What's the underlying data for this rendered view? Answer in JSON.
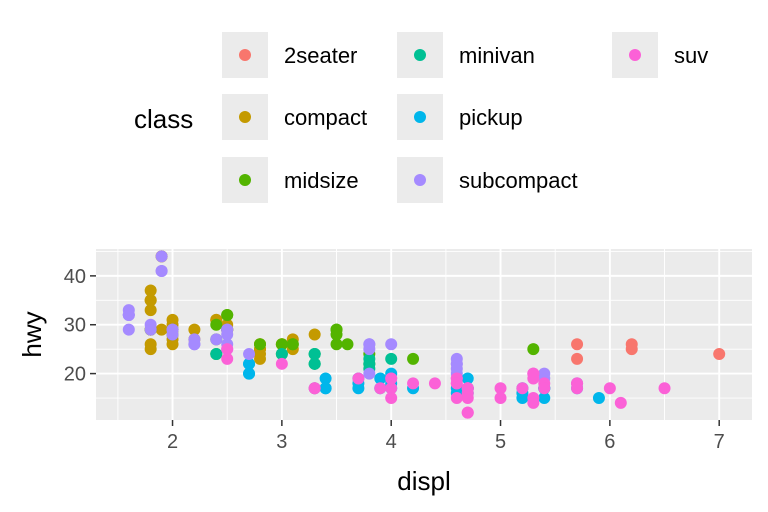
{
  "chart_data": {
    "type": "scatter",
    "title": "",
    "xlabel": "displ",
    "ylabel": "hwy",
    "xlim": [
      1.3,
      7.3
    ],
    "ylim": [
      10.5,
      45.5
    ],
    "x_ticks": [
      2,
      3,
      4,
      5,
      6,
      7
    ],
    "y_ticks": [
      20,
      30,
      40
    ],
    "grid": true,
    "legend": {
      "title": "class",
      "placement": "top",
      "entries": [
        {
          "label": "2seater",
          "color": "#F8766D"
        },
        {
          "label": "compact",
          "color": "#C49A00"
        },
        {
          "label": "midsize",
          "color": "#53B400"
        },
        {
          "label": "minivan",
          "color": "#00C094"
        },
        {
          "label": "pickup",
          "color": "#00B6EB"
        },
        {
          "label": "subcompact",
          "color": "#A58AFF"
        },
        {
          "label": "suv",
          "color": "#FB61D7"
        }
      ]
    },
    "series": [
      {
        "name": "2seater",
        "color": "#F8766D",
        "points": [
          [
            5.7,
            26
          ],
          [
            5.7,
            23
          ],
          [
            6.2,
            26
          ],
          [
            6.2,
            25
          ],
          [
            7.0,
            24
          ]
        ]
      },
      {
        "name": "compact",
        "color": "#C49A00",
        "points": [
          [
            1.8,
            29
          ],
          [
            1.8,
            29
          ],
          [
            2.0,
            31
          ],
          [
            2.0,
            30
          ],
          [
            2.8,
            26
          ],
          [
            2.8,
            26
          ],
          [
            3.1,
            27
          ],
          [
            1.8,
            26
          ],
          [
            1.8,
            25
          ],
          [
            2.0,
            28
          ],
          [
            2.0,
            27
          ],
          [
            2.8,
            25
          ],
          [
            2.8,
            25
          ],
          [
            3.1,
            25
          ],
          [
            2.2,
            27
          ],
          [
            2.2,
            29
          ],
          [
            2.4,
            31
          ],
          [
            2.4,
            31
          ],
          [
            3.0,
            26
          ],
          [
            3.0,
            26
          ],
          [
            3.3,
            28
          ],
          [
            1.8,
            33
          ],
          [
            1.8,
            35
          ],
          [
            1.8,
            37
          ],
          [
            1.8,
            35
          ],
          [
            1.9,
            44
          ],
          [
            1.9,
            29
          ],
          [
            2.0,
            26
          ],
          [
            2.0,
            29
          ],
          [
            2.5,
            29
          ],
          [
            2.5,
            29
          ],
          [
            2.8,
            24
          ],
          [
            2.8,
            23
          ],
          [
            1.9,
            44
          ],
          [
            2.0,
            29
          ],
          [
            2.5,
            30
          ],
          [
            2.5,
            29
          ]
        ]
      },
      {
        "name": "midsize",
        "color": "#53B400",
        "points": [
          [
            2.4,
            27
          ],
          [
            2.4,
            30
          ],
          [
            3.1,
            26
          ],
          [
            3.5,
            29
          ],
          [
            3.6,
            26
          ],
          [
            2.4,
            24
          ],
          [
            3.0,
            24
          ],
          [
            3.3,
            22
          ],
          [
            3.3,
            24
          ],
          [
            3.8,
            24
          ],
          [
            3.8,
            22
          ],
          [
            4.2,
            23
          ],
          [
            5.3,
            25
          ],
          [
            1.8,
            29
          ],
          [
            2.0,
            28
          ],
          [
            2.0,
            29
          ],
          [
            2.8,
            26
          ],
          [
            3.1,
            26
          ],
          [
            2.5,
            32
          ],
          [
            2.5,
            32
          ],
          [
            2.5,
            29
          ],
          [
            3.0,
            26
          ],
          [
            3.5,
            26
          ],
          [
            3.5,
            29
          ],
          [
            3.5,
            28
          ]
        ]
      },
      {
        "name": "minivan",
        "color": "#00C094",
        "points": [
          [
            2.4,
            24
          ],
          [
            3.0,
            24
          ],
          [
            3.3,
            22
          ],
          [
            3.3,
            22
          ],
          [
            3.3,
            24
          ],
          [
            3.3,
            24
          ],
          [
            3.3,
            17
          ],
          [
            3.8,
            22
          ],
          [
            3.8,
            21
          ],
          [
            3.8,
            23
          ],
          [
            4.0,
            23
          ]
        ]
      },
      {
        "name": "pickup",
        "color": "#00B6EB",
        "points": [
          [
            2.7,
            20
          ],
          [
            2.7,
            22
          ],
          [
            2.7,
            20
          ],
          [
            3.4,
            17
          ],
          [
            3.4,
            19
          ],
          [
            3.7,
            18
          ],
          [
            3.7,
            17
          ],
          [
            3.9,
            17
          ],
          [
            3.9,
            19
          ],
          [
            4.7,
            17
          ],
          [
            4.7,
            16
          ],
          [
            4.7,
            17
          ],
          [
            5.2,
            15
          ],
          [
            5.2,
            16
          ],
          [
            5.7,
            17
          ],
          [
            5.9,
            15
          ],
          [
            4.0,
            20
          ],
          [
            4.6,
            17
          ],
          [
            4.6,
            16
          ],
          [
            5.4,
            17
          ],
          [
            5.4,
            15
          ],
          [
            5.4,
            17
          ],
          [
            5.4,
            17
          ],
          [
            2.7,
            22
          ],
          [
            3.4,
            17
          ],
          [
            4.0,
            18
          ],
          [
            4.0,
            17
          ],
          [
            4.2,
            17
          ],
          [
            4.7,
            19
          ],
          [
            4.7,
            17
          ],
          [
            5.2,
            17
          ],
          [
            5.7,
            18
          ],
          [
            3.7,
            19
          ]
        ]
      },
      {
        "name": "subcompact",
        "color": "#A58AFF",
        "points": [
          [
            1.6,
            33
          ],
          [
            1.6,
            32
          ],
          [
            1.6,
            32
          ],
          [
            1.6,
            29
          ],
          [
            1.6,
            32
          ],
          [
            1.8,
            29
          ],
          [
            1.8,
            30
          ],
          [
            2.2,
            26
          ],
          [
            2.0,
            28
          ],
          [
            2.5,
            26
          ],
          [
            2.5,
            28
          ],
          [
            2.7,
            24
          ],
          [
            3.8,
            26
          ],
          [
            3.8,
            26
          ],
          [
            4.0,
            26
          ],
          [
            4.6,
            23
          ],
          [
            4.6,
            22
          ],
          [
            4.6,
            21
          ],
          [
            5.4,
            20
          ],
          [
            1.9,
            41
          ],
          [
            1.9,
            44
          ],
          [
            2.0,
            29
          ],
          [
            2.2,
            27
          ],
          [
            2.4,
            27
          ],
          [
            2.5,
            25
          ],
          [
            3.8,
            20
          ],
          [
            4.6,
            20
          ],
          [
            4.6,
            22
          ],
          [
            5.4,
            19
          ],
          [
            3.8,
            25
          ],
          [
            2.2,
            26
          ],
          [
            1.9,
            41
          ],
          [
            2.0,
            29
          ],
          [
            2.5,
            29
          ],
          [
            2.5,
            29
          ]
        ]
      },
      {
        "name": "suv",
        "color": "#FB61D7",
        "points": [
          [
            5.3,
            20
          ],
          [
            5.3,
            15
          ],
          [
            5.3,
            20
          ],
          [
            5.7,
            17
          ],
          [
            6.0,
            17
          ],
          [
            5.3,
            19
          ],
          [
            5.3,
            14
          ],
          [
            5.7,
            18
          ],
          [
            6.5,
            17
          ],
          [
            6.1,
            14
          ],
          [
            4.2,
            18
          ],
          [
            4.0,
            17
          ],
          [
            4.0,
            15
          ],
          [
            4.0,
            19
          ],
          [
            4.6,
            19
          ],
          [
            5.0,
            17
          ],
          [
            4.7,
            12
          ],
          [
            4.7,
            17
          ],
          [
            4.7,
            17
          ],
          [
            4.7,
            15
          ],
          [
            5.7,
            18
          ],
          [
            4.7,
            16
          ],
          [
            5.4,
            18
          ],
          [
            5.4,
            17
          ],
          [
            4.6,
            19
          ],
          [
            4.6,
            15
          ],
          [
            4.4,
            18
          ],
          [
            3.3,
            17
          ],
          [
            4.0,
            19
          ],
          [
            3.7,
            19
          ],
          [
            3.9,
            17
          ],
          [
            4.6,
            18
          ],
          [
            5.2,
            17
          ],
          [
            4.6,
            18
          ],
          [
            4.7,
            12
          ],
          [
            2.5,
            23
          ],
          [
            2.5,
            25
          ],
          [
            3.0,
            22
          ],
          [
            3.3,
            17
          ],
          [
            4.7,
            17
          ],
          [
            5.0,
            15
          ]
        ]
      }
    ]
  }
}
